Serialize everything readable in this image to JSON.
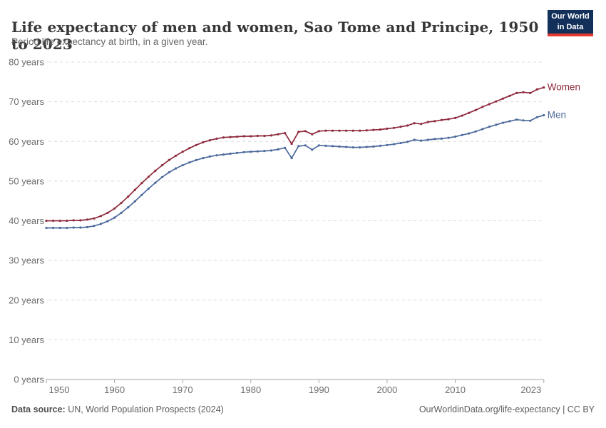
{
  "header": {
    "title": "Life expectancy of men and women, Sao Tome and Principe, 1950 to 2023",
    "subtitle": "Period life expectancy at birth, in a given year."
  },
  "logo": {
    "line1": "Our World",
    "line2": "in Data"
  },
  "chart_data": {
    "type": "line",
    "title": "Life expectancy of men and women, Sao Tome and Principe, 1950 to 2023",
    "xlabel": "",
    "ylabel": "years",
    "ylim": [
      0,
      80
    ],
    "y_ticks": [
      0,
      10,
      20,
      30,
      40,
      50,
      60,
      70,
      80
    ],
    "y_tick_suffix": " years",
    "x_ticks": [
      1950,
      1960,
      1970,
      1980,
      1990,
      2000,
      2010,
      2023
    ],
    "grid": "dashed-horizontal",
    "legend_position": "end-of-line",
    "x": [
      1950,
      1951,
      1952,
      1953,
      1954,
      1955,
      1956,
      1957,
      1958,
      1959,
      1960,
      1961,
      1962,
      1963,
      1964,
      1965,
      1966,
      1967,
      1968,
      1969,
      1970,
      1971,
      1972,
      1973,
      1974,
      1975,
      1976,
      1977,
      1978,
      1979,
      1980,
      1981,
      1982,
      1983,
      1984,
      1985,
      1986,
      1987,
      1988,
      1989,
      1990,
      1991,
      1992,
      1993,
      1994,
      1995,
      1996,
      1997,
      1998,
      1999,
      2000,
      2001,
      2002,
      2003,
      2004,
      2005,
      2006,
      2007,
      2008,
      2009,
      2010,
      2011,
      2012,
      2013,
      2014,
      2015,
      2016,
      2017,
      2018,
      2019,
      2020,
      2021,
      2022,
      2023
    ],
    "series": [
      {
        "name": "Women",
        "color": "#8e2b3c",
        "values": [
          40.0,
          40.0,
          40.0,
          40.0,
          40.1,
          40.1,
          40.3,
          40.6,
          41.2,
          42.0,
          43.1,
          44.5,
          46.1,
          47.8,
          49.5,
          51.1,
          52.6,
          54.0,
          55.3,
          56.4,
          57.4,
          58.3,
          59.1,
          59.8,
          60.3,
          60.7,
          61.0,
          61.1,
          61.2,
          61.3,
          61.3,
          61.4,
          61.4,
          61.5,
          61.8,
          62.1,
          59.4,
          62.4,
          62.6,
          61.8,
          62.6,
          62.7,
          62.7,
          62.7,
          62.7,
          62.7,
          62.7,
          62.8,
          62.9,
          63.0,
          63.2,
          63.4,
          63.7,
          64.0,
          64.6,
          64.4,
          64.9,
          65.1,
          65.4,
          65.6,
          65.9,
          66.5,
          67.2,
          67.9,
          68.7,
          69.4,
          70.1,
          70.8,
          71.5,
          72.2,
          72.4,
          72.2,
          73.1,
          73.6
        ]
      },
      {
        "name": "Men",
        "color": "#4c6a9c",
        "values": [
          38.2,
          38.2,
          38.2,
          38.2,
          38.3,
          38.3,
          38.4,
          38.7,
          39.2,
          39.9,
          40.8,
          42.0,
          43.4,
          44.9,
          46.5,
          48.1,
          49.6,
          51.0,
          52.2,
          53.2,
          54.0,
          54.7,
          55.3,
          55.8,
          56.2,
          56.5,
          56.7,
          56.9,
          57.1,
          57.3,
          57.4,
          57.5,
          57.6,
          57.7,
          58.0,
          58.4,
          55.8,
          58.8,
          59.0,
          57.9,
          59.0,
          58.9,
          58.8,
          58.7,
          58.6,
          58.5,
          58.5,
          58.6,
          58.7,
          58.9,
          59.1,
          59.3,
          59.6,
          59.9,
          60.4,
          60.2,
          60.4,
          60.6,
          60.7,
          60.9,
          61.2,
          61.6,
          62.0,
          62.5,
          63.1,
          63.7,
          64.2,
          64.7,
          65.1,
          65.5,
          65.3,
          65.2,
          66.1,
          66.6
        ]
      }
    ]
  },
  "colors": {
    "grid": "#dcdcdc",
    "axis": "#a6a6a6",
    "tick_label": "#6c6c6c",
    "logo_bg": "#12305a",
    "logo_stripe": "#e2382f"
  },
  "footer": {
    "source_label": "Data source:",
    "source_text": " UN, World Population Prospects (2024)",
    "credit": "OurWorldinData.org/life-expectancy | CC BY"
  }
}
